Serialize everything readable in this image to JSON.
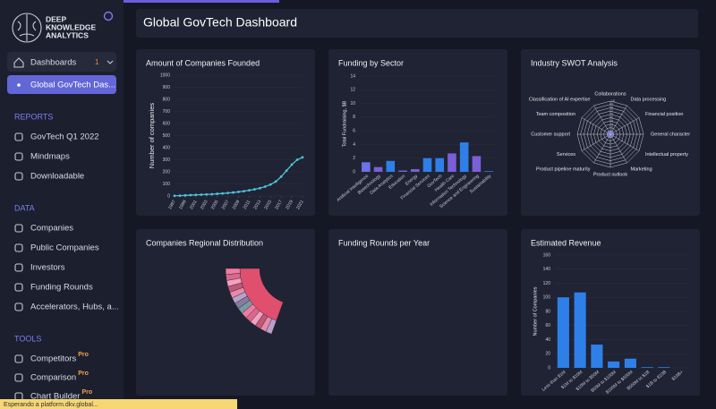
{
  "sidebar": {
    "brand": [
      "DEEP",
      "KNOWLEDGE",
      "ANALYTICS"
    ],
    "dashboards": {
      "label": "Dashboards",
      "badge": "1"
    },
    "active": "Global GovTech Das...",
    "sections": [
      {
        "title": "REPORTS",
        "items": [
          {
            "label": "GovTech Q1 2022"
          },
          {
            "label": "Mindmaps"
          },
          {
            "label": "Downloadable"
          }
        ]
      },
      {
        "title": "DATA",
        "items": [
          {
            "label": "Companies"
          },
          {
            "label": "Public Companies"
          },
          {
            "label": "Investors"
          },
          {
            "label": "Funding Rounds"
          },
          {
            "label": "Accelerators, Hubs, a..."
          }
        ]
      },
      {
        "title": "TOOLS",
        "items": [
          {
            "label": "Competitors",
            "badge": "Pro"
          },
          {
            "label": "Comparison",
            "badge": "Pro"
          },
          {
            "label": "Chart Builder",
            "badge": "Pro"
          }
        ]
      }
    ]
  },
  "status": "Esperando a platform.dkv.global...",
  "header": {
    "title": "Global GovTech Dashboard"
  },
  "panels": [
    {
      "title": "Companies Regional Distribution"
    },
    {
      "title": "Funding Rounds per Year"
    }
  ],
  "chart_data": [
    {
      "type": "line",
      "title": "Amount of Companies Founded",
      "ylabel": "Number of companies",
      "x": [
        1997,
        1998,
        1999,
        2000,
        2001,
        2002,
        2003,
        2004,
        2005,
        2006,
        2007,
        2008,
        2009,
        2010,
        2011,
        2012,
        2013,
        2014,
        2015,
        2016,
        2017,
        2018,
        2019,
        2020,
        2021
      ],
      "values": [
        2,
        3,
        5,
        7,
        9,
        11,
        13,
        15,
        18,
        21,
        25,
        29,
        34,
        40,
        47,
        55,
        65,
        78,
        95,
        120,
        160,
        210,
        260,
        300,
        320
      ],
      "color": "#4fc3d9",
      "xlim": [
        1997,
        2021
      ],
      "xticks": [
        1997,
        1999,
        2001,
        2003,
        2005,
        2007,
        2009,
        2011,
        2013,
        2015,
        2017,
        2019,
        2021
      ],
      "ylim": [
        0,
        1000
      ],
      "yticks": [
        0,
        100,
        200,
        300,
        400,
        500,
        600,
        700,
        800,
        900,
        1000
      ]
    },
    {
      "type": "bar",
      "title": "Funding by Sector",
      "ylabel": "Total Fundraising, $B",
      "categories": [
        "Artificial Intelligence",
        "Biotechnology",
        "Data Analytics",
        "Education",
        "Energy",
        "Financial Services",
        "GovTech",
        "Health Care",
        "Information Technology",
        "Science and Engineering",
        "Sustainability"
      ],
      "values": [
        1.4,
        0.7,
        1.6,
        0.2,
        0.4,
        2.0,
        2.0,
        2.7,
        4.3,
        2.3,
        0.1
      ],
      "colors": [
        "#6b73e6",
        "#7a5fd6",
        "#2f7fe8",
        "#7a5fd6",
        "#7a5fd6",
        "#2f7fe8",
        "#2f7fe8",
        "#7a5fd6",
        "#2f7fe8",
        "#7a5fd6",
        "#2f7fe8"
      ],
      "ylim": [
        0,
        14
      ],
      "yticks": [
        0,
        2,
        4,
        6,
        8,
        10,
        12,
        14
      ]
    },
    {
      "type": "radar",
      "title": "Industry SWOT Analysis",
      "categories": [
        "Collaborations",
        "Data processing",
        "Financial position",
        "General character",
        "Intellectual property",
        "Marketing",
        "Product outlook",
        "Product pipeline maturity",
        "Services",
        "Customer support",
        "Team composition",
        "Classification of AI expertise"
      ],
      "values": [
        1,
        1,
        1,
        1,
        1,
        1,
        1,
        1,
        1,
        1,
        1,
        1
      ],
      "color": "#9aa0ff",
      "rlim": [
        0,
        10
      ],
      "rticks": [
        1,
        2,
        3,
        4,
        5,
        6,
        7,
        8,
        9,
        10
      ]
    },
    {
      "type": "bar",
      "title": "Estimated Revenue",
      "ylabel": "Number of Companies",
      "categories": [
        "Less than $1M",
        "$1M to $10M",
        "$10M to $50M",
        "$50M to $100M",
        "$100M to $500M",
        "$500M to $1B",
        "$1B to $10B",
        "$10B+"
      ],
      "values": [
        100,
        107,
        33,
        9,
        13,
        1,
        1,
        0
      ],
      "color": "#2f7fe8",
      "ylim": [
        0,
        160
      ],
      "yticks": [
        0,
        20,
        40,
        60,
        80,
        100,
        120,
        140,
        160
      ]
    }
  ]
}
